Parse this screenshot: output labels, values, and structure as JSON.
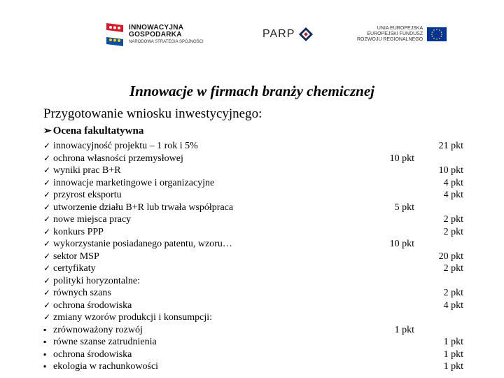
{
  "logos": {
    "ig": {
      "line1": "INNOWACYJNA",
      "line2": "GOSPODARKA",
      "line3": "NARODOWA STRATEGIA SPÓJNOŚCI"
    },
    "parp": {
      "text": "PARP"
    },
    "eu": {
      "line1": "UNIA EUROPEJSKA",
      "line2": "EUROPEJSKI FUNDUSZ",
      "line3": "ROZWOJU REGIONALNEGO"
    }
  },
  "title": "Innowacje w firmach branży chemicznej",
  "subhead": "Przygotowanie wniosku inwestycyjnego:",
  "section": "Ocena fakultatywna",
  "items": [
    {
      "bullet": "✓",
      "label": "innowacyjność projektu – 1 rok i 5%",
      "mid": "",
      "pts": "21 pkt"
    },
    {
      "bullet": "✓",
      "label": "ochrona własności przemysłowej",
      "mid": "10 pkt",
      "pts": ""
    },
    {
      "bullet": "✓",
      "label": "wyniki prac B+R",
      "mid": "",
      "pts": "10 pkt"
    },
    {
      "bullet": "✓",
      "label": "innowacje marketingowe i organizacyjne",
      "mid": "",
      "pts": "4 pkt"
    },
    {
      "bullet": "✓",
      "label": "przyrost eksportu",
      "mid": "",
      "pts": "4 pkt"
    },
    {
      "bullet": "✓",
      "label": "utworzenie działu B+R lub trwała współpraca",
      "mid": "5 pkt",
      "pts": ""
    },
    {
      "bullet": "✓",
      "label": "nowe miejsca pracy",
      "mid": "",
      "pts": "2 pkt"
    },
    {
      "bullet": "✓",
      "label": "konkurs PPP",
      "mid": "",
      "pts": "2 pkt"
    },
    {
      "bullet": "✓",
      "label": "wykorzystanie posiadanego patentu, wzoru…",
      "mid": "10 pkt",
      "pts": ""
    },
    {
      "bullet": "✓",
      "label": "sektor MSP",
      "mid": "",
      "pts": "20 pkt"
    },
    {
      "bullet": "✓",
      "label": "certyfikaty",
      "mid": "",
      "pts": "2 pkt"
    },
    {
      "bullet": "✓",
      "label": "polityki horyzontalne:",
      "mid": "",
      "pts": ""
    },
    {
      "bullet": "✓",
      "label": "równych szans",
      "mid": "",
      "pts": "2 pkt"
    },
    {
      "bullet": "✓",
      "label": "ochrona środowiska",
      "mid": "",
      "pts": "4 pkt"
    },
    {
      "bullet": "✓",
      "label": "zmiany wzorów produkcji i konsumpcji:",
      "mid": "",
      "pts": ""
    },
    {
      "bullet": "▪",
      "label": "zrównoważony rozwój",
      "mid": "1 pkt",
      "pts": ""
    },
    {
      "bullet": "▪",
      "label": "równe szanse zatrudnienia",
      "mid": "",
      "pts": "1 pkt"
    },
    {
      "bullet": "▪",
      "label": "ochrona środowiska",
      "mid": "",
      "pts": "1 pkt"
    },
    {
      "bullet": "▪",
      "label": "ekologia w rachunkowości",
      "mid": "",
      "pts": "1 pkt"
    }
  ],
  "colors": {
    "text": "#000000",
    "background": "#ffffff",
    "eu_blue": "#003399",
    "eu_gold": "#ffcc00",
    "ig_red": "#d71a28",
    "ig_blue": "#0b4ea2",
    "parp_navy": "#14285a",
    "parp_red": "#c0142c"
  }
}
